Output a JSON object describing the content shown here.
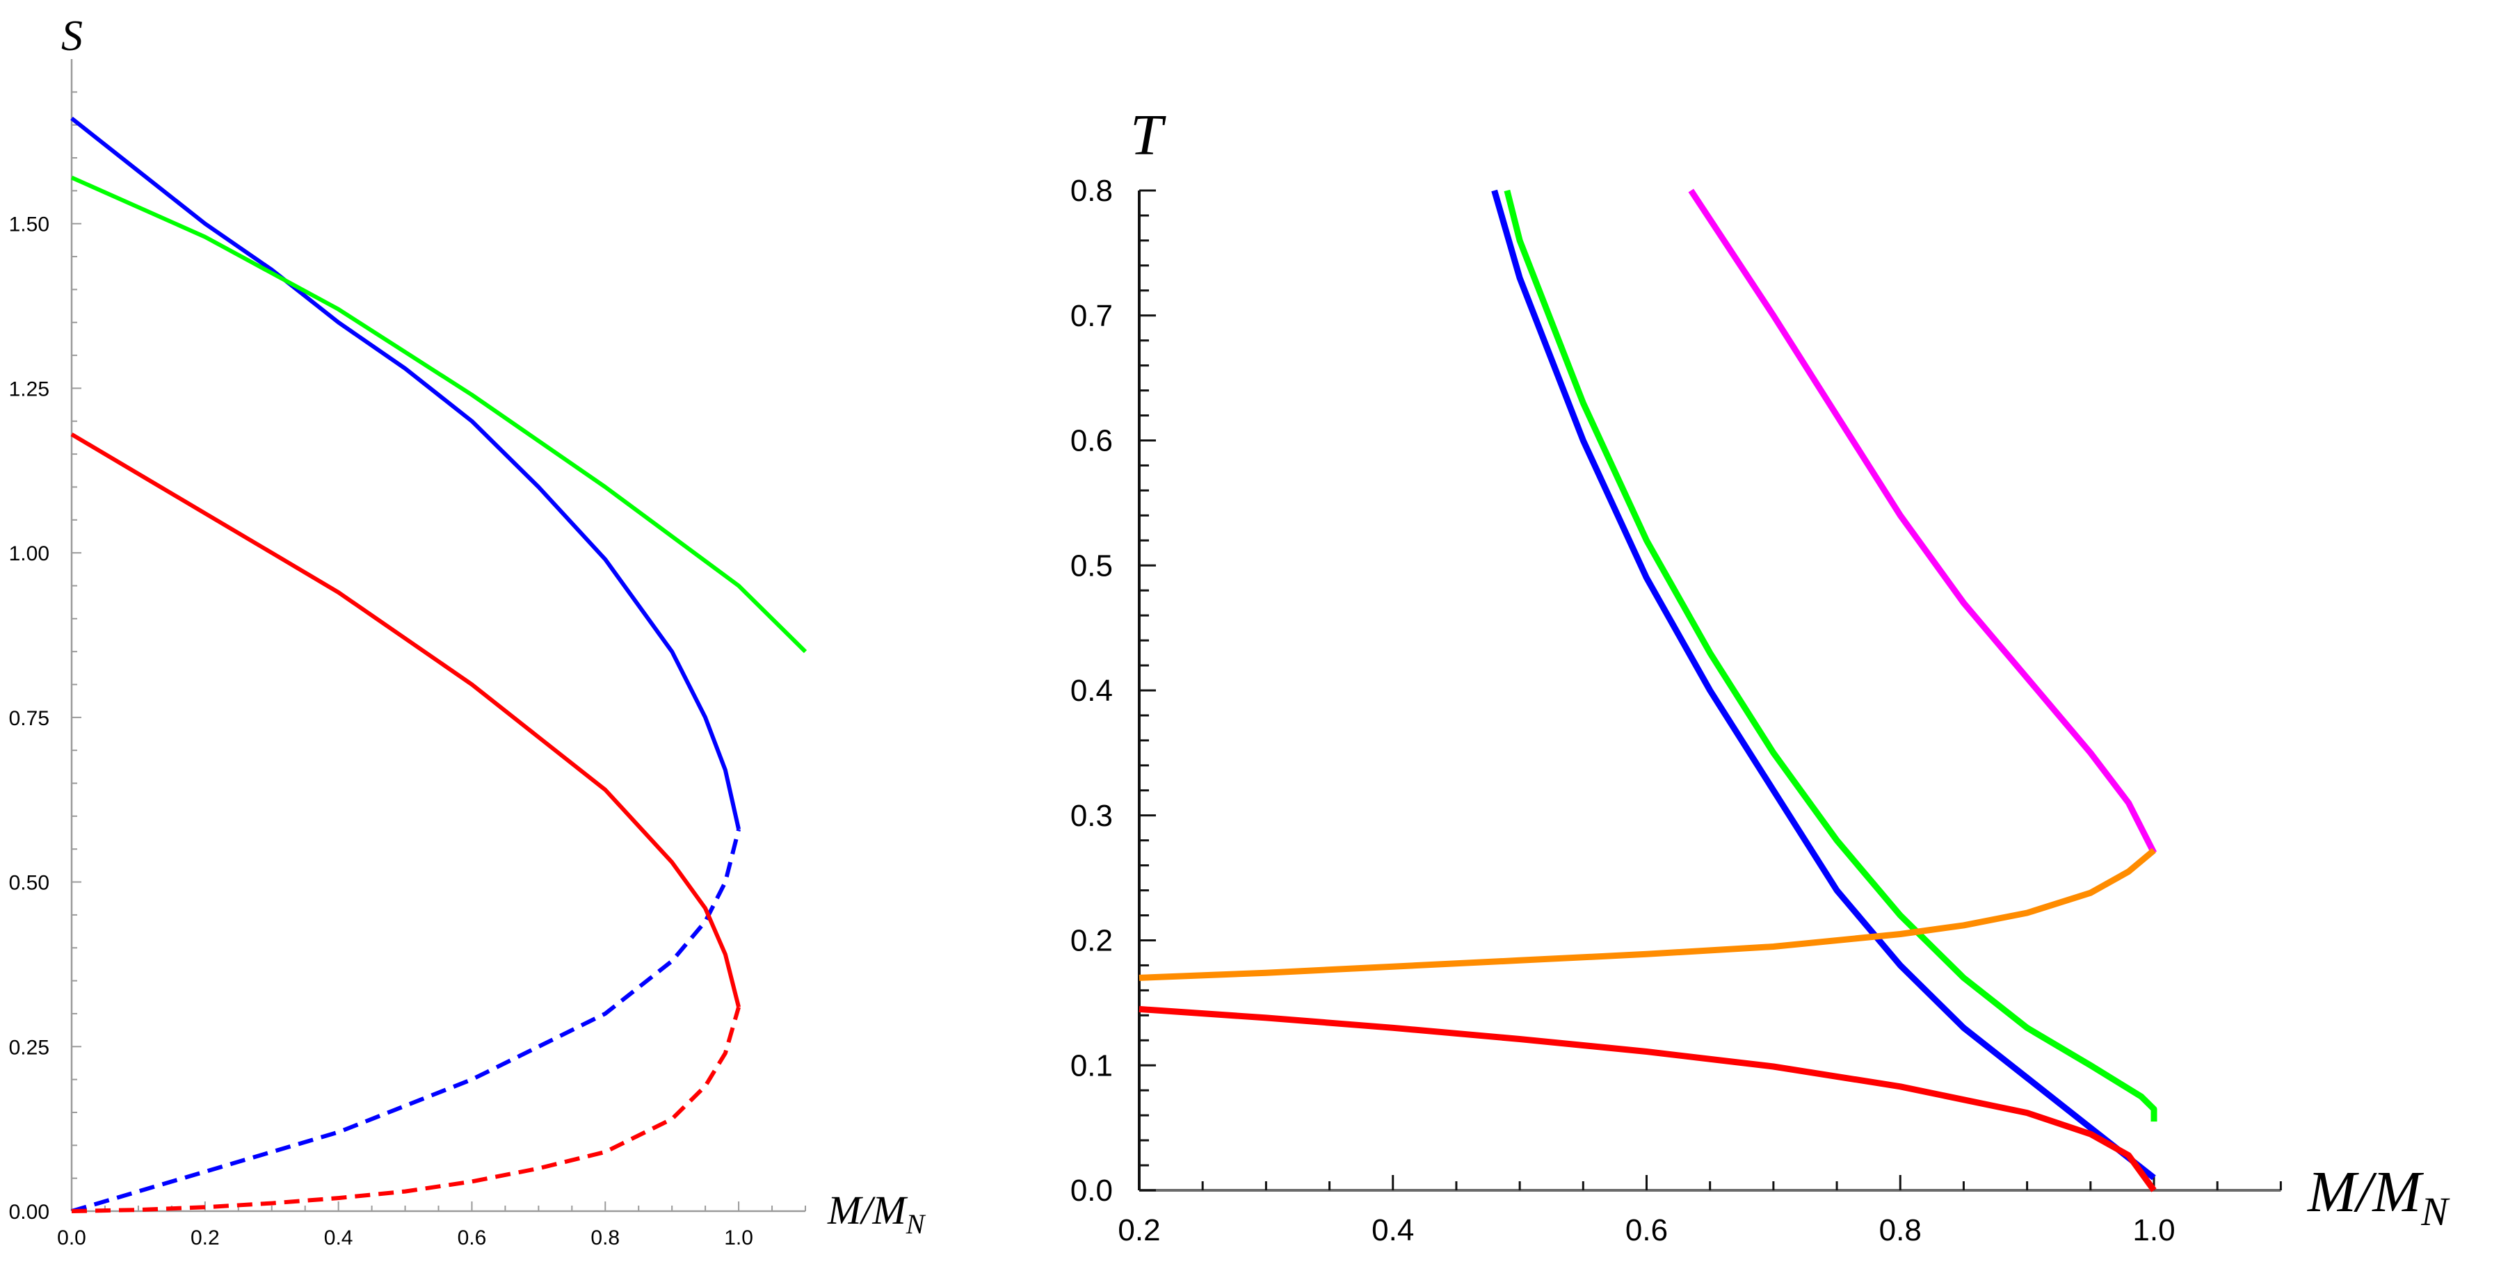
{
  "chart_data": [
    {
      "type": "line",
      "xlabel": "M/M",
      "xlabel_sub": "N",
      "ylabel": "S",
      "xlim": [
        0,
        1.1
      ],
      "ylim": [
        0,
        1.75
      ],
      "xticks": [
        "0.0",
        "0.2",
        "0.4",
        "0.6",
        "0.8",
        "1.0"
      ],
      "yticks": [
        "0.00",
        "0.25",
        "0.50",
        "0.75",
        "1.00",
        "1.25",
        "1.50"
      ],
      "grid": false,
      "series": [
        {
          "name": "blue-solid",
          "color": "#0000ff",
          "dash": false,
          "x": [
            0,
            0.1,
            0.2,
            0.3,
            0.4,
            0.5,
            0.6,
            0.7,
            0.8,
            0.9,
            0.95,
            0.98,
            1.0
          ],
          "y": [
            1.66,
            1.58,
            1.5,
            1.43,
            1.35,
            1.28,
            1.2,
            1.1,
            0.99,
            0.85,
            0.75,
            0.67,
            0.58
          ]
        },
        {
          "name": "blue-dashed",
          "color": "#0000ff",
          "dash": true,
          "x": [
            0,
            0.1,
            0.2,
            0.3,
            0.4,
            0.5,
            0.6,
            0.7,
            0.8,
            0.9,
            0.95,
            0.98,
            1.0
          ],
          "y": [
            0,
            0.03,
            0.06,
            0.09,
            0.12,
            0.16,
            0.2,
            0.25,
            0.3,
            0.38,
            0.44,
            0.5,
            0.58
          ]
        },
        {
          "name": "green",
          "color": "#00ff00",
          "dash": false,
          "x": [
            0,
            0.2,
            0.4,
            0.6,
            0.8,
            1.0,
            1.1
          ],
          "y": [
            1.57,
            1.48,
            1.37,
            1.24,
            1.1,
            0.95,
            0.85
          ]
        },
        {
          "name": "red-solid",
          "color": "#ff0000",
          "dash": false,
          "x": [
            0,
            0.1,
            0.2,
            0.3,
            0.4,
            0.5,
            0.6,
            0.7,
            0.8,
            0.9,
            0.95,
            0.98,
            1.0
          ],
          "y": [
            1.18,
            1.12,
            1.06,
            1.0,
            0.94,
            0.87,
            0.8,
            0.72,
            0.64,
            0.53,
            0.46,
            0.39,
            0.31
          ]
        },
        {
          "name": "red-dashed",
          "color": "#ff0000",
          "dash": true,
          "x": [
            0,
            0.1,
            0.2,
            0.3,
            0.4,
            0.5,
            0.6,
            0.7,
            0.8,
            0.9,
            0.95,
            0.98,
            1.0
          ],
          "y": [
            0,
            0.002,
            0.006,
            0.012,
            0.02,
            0.03,
            0.045,
            0.065,
            0.09,
            0.14,
            0.19,
            0.24,
            0.31
          ]
        }
      ]
    },
    {
      "type": "line",
      "xlabel": "M/M",
      "xlabel_sub": "N",
      "ylabel": "T",
      "xlim": [
        0.2,
        1.1
      ],
      "ylim": [
        0,
        0.8
      ],
      "xticks": [
        "0.2",
        "0.4",
        "0.6",
        "0.8",
        "1.0"
      ],
      "yticks": [
        "0.0",
        "0.1",
        "0.2",
        "0.3",
        "0.4",
        "0.5",
        "0.6",
        "0.7",
        "0.8"
      ],
      "grid": false,
      "series": [
        {
          "name": "blue",
          "color": "#0000ff",
          "x": [
            0.48,
            0.5,
            0.55,
            0.6,
            0.65,
            0.7,
            0.75,
            0.8,
            0.85,
            0.9,
            0.95,
            1.0
          ],
          "y": [
            0.8,
            0.73,
            0.6,
            0.49,
            0.4,
            0.32,
            0.24,
            0.18,
            0.13,
            0.09,
            0.05,
            0.01
          ]
        },
        {
          "name": "green",
          "color": "#00ff00",
          "x": [
            0.49,
            0.5,
            0.55,
            0.6,
            0.65,
            0.7,
            0.75,
            0.8,
            0.85,
            0.9,
            0.95,
            0.99,
            1.0,
            1.0
          ],
          "y": [
            0.8,
            0.76,
            0.63,
            0.52,
            0.43,
            0.35,
            0.28,
            0.22,
            0.17,
            0.13,
            0.1,
            0.075,
            0.065,
            0.055
          ]
        },
        {
          "name": "magenta",
          "color": "#ff00ff",
          "x": [
            0.635,
            0.7,
            0.75,
            0.8,
            0.85,
            0.9,
            0.95,
            0.98,
            1.0
          ],
          "y": [
            0.8,
            0.7,
            0.62,
            0.54,
            0.47,
            0.41,
            0.35,
            0.31,
            0.27
          ]
        },
        {
          "name": "orange",
          "color": "#ff8c00",
          "x": [
            0.2,
            0.3,
            0.4,
            0.5,
            0.6,
            0.7,
            0.8,
            0.85,
            0.9,
            0.95,
            0.98,
            1.0
          ],
          "y": [
            0.17,
            0.174,
            0.179,
            0.184,
            0.189,
            0.195,
            0.205,
            0.212,
            0.222,
            0.238,
            0.255,
            0.272
          ]
        },
        {
          "name": "red",
          "color": "#ff0000",
          "x": [
            0.2,
            0.3,
            0.4,
            0.5,
            0.6,
            0.7,
            0.8,
            0.9,
            0.95,
            0.98,
            1.0
          ],
          "y": [
            0.145,
            0.138,
            0.13,
            0.121,
            0.111,
            0.099,
            0.083,
            0.062,
            0.045,
            0.028,
            0.0
          ]
        }
      ]
    }
  ]
}
